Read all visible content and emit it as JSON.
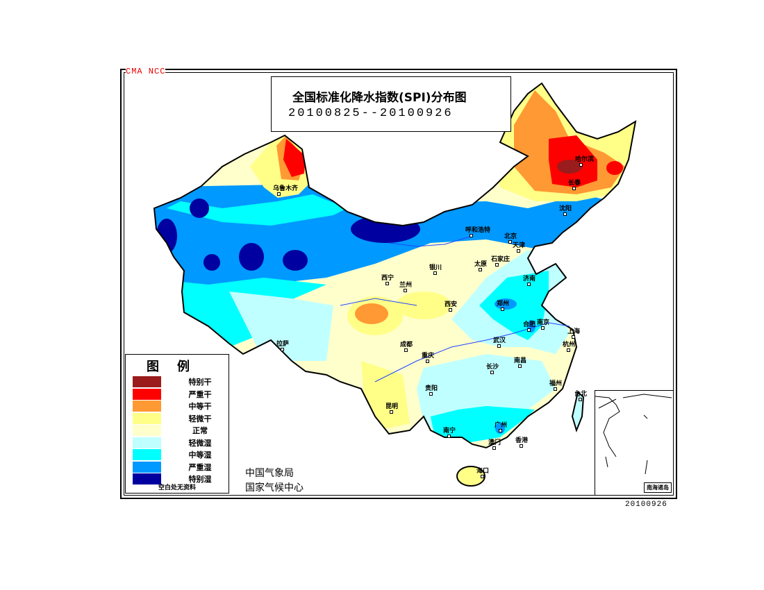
{
  "header": {
    "watermark": "CMA  NCC",
    "title": "全国标准化降水指数(SPI)分布图",
    "period": "20100825--20100926"
  },
  "legend": {
    "title": "图例",
    "items": [
      {
        "label": "特别干",
        "color": "#9B1C1C"
      },
      {
        "label": "严重干",
        "color": "#FF0000"
      },
      {
        "label": "中等干",
        "color": "#FF9933"
      },
      {
        "label": "轻微干",
        "color": "#FFFF88"
      },
      {
        "label": "正常",
        "color": "#FFFFCC"
      },
      {
        "label": "轻微湿",
        "color": "#C0FFFF"
      },
      {
        "label": "中等湿",
        "color": "#00FFFF"
      },
      {
        "label": "严重湿",
        "color": "#0099FF"
      },
      {
        "label": "特别湿",
        "color": "#0000A0"
      }
    ],
    "note": "空白处无资料"
  },
  "agency": {
    "line1": "中国气象局",
    "line2": "国家气候中心"
  },
  "inset": {
    "label": "南海诸岛"
  },
  "datestamp": "20100926",
  "cities": [
    "乌鲁木齐",
    "拉萨",
    "西宁",
    "兰州",
    "银川",
    "呼和浩特",
    "北京",
    "天津",
    "太原",
    "石家庄",
    "济南",
    "郑州",
    "西安",
    "成都",
    "重庆",
    "武汉",
    "合肥",
    "南京",
    "上海",
    "杭州",
    "长沙",
    "南昌",
    "福州",
    "贵阳",
    "昆明",
    "南宁",
    "广州",
    "澳门",
    "香港",
    "海口",
    "台北",
    "哈尔滨",
    "长春",
    "沈阳"
  ]
}
